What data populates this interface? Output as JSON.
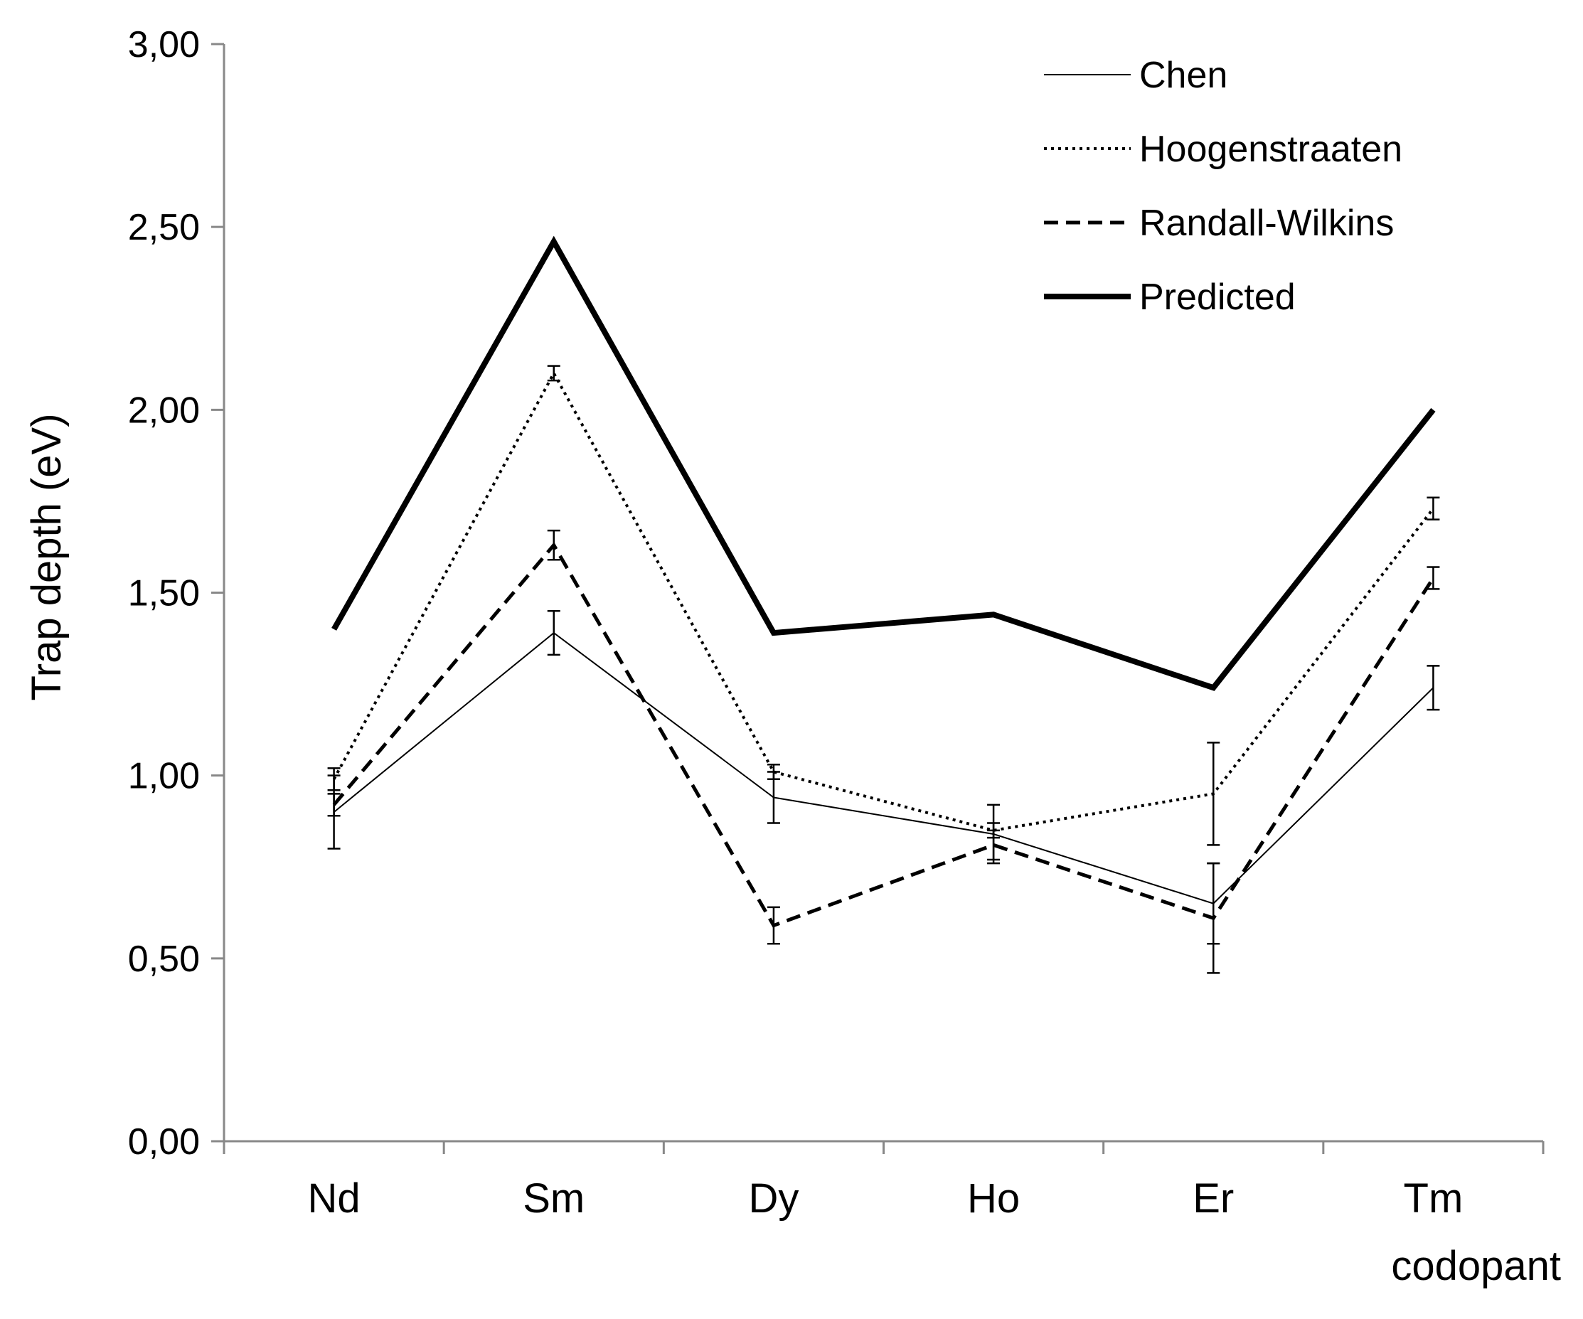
{
  "chart_data": {
    "type": "line",
    "title": "",
    "xlabel": "codopant",
    "ylabel": "Trap depth (eV)",
    "categories": [
      "Nd",
      "Sm",
      "Dy",
      "Ho",
      "Er",
      "Tm"
    ],
    "ylim": [
      0,
      3
    ],
    "yticks": [
      "0,00",
      "0,50",
      "1,00",
      "1,50",
      "2,00",
      "2,50",
      "3,00"
    ],
    "ytick_values": [
      0,
      0.5,
      1.0,
      1.5,
      2.0,
      2.5,
      3.0
    ],
    "grid": false,
    "legend_position": "top-right",
    "series": [
      {
        "name": "Chen",
        "style": "thin-solid",
        "values": [
          0.9,
          1.39,
          0.94,
          0.84,
          0.65,
          1.24
        ],
        "errors": [
          0.1,
          0.06,
          0.07,
          0.08,
          0.11,
          0.06
        ]
      },
      {
        "name": "Hoogenstraaten",
        "style": "dotted",
        "values": [
          0.99,
          2.1,
          1.01,
          0.85,
          0.95,
          1.73
        ],
        "errors": [
          0.03,
          0.02,
          0.02,
          0.02,
          0.14,
          0.03
        ]
      },
      {
        "name": "Randall-Wilkins",
        "style": "dashed",
        "values": [
          0.92,
          1.63,
          0.59,
          0.81,
          0.61,
          1.54
        ],
        "errors": [
          0.03,
          0.04,
          0.05,
          0.04,
          0.15,
          0.03
        ]
      },
      {
        "name": "Predicted",
        "style": "thick-solid",
        "values": [
          1.4,
          2.46,
          1.39,
          1.44,
          1.24,
          2.0
        ]
      }
    ]
  }
}
